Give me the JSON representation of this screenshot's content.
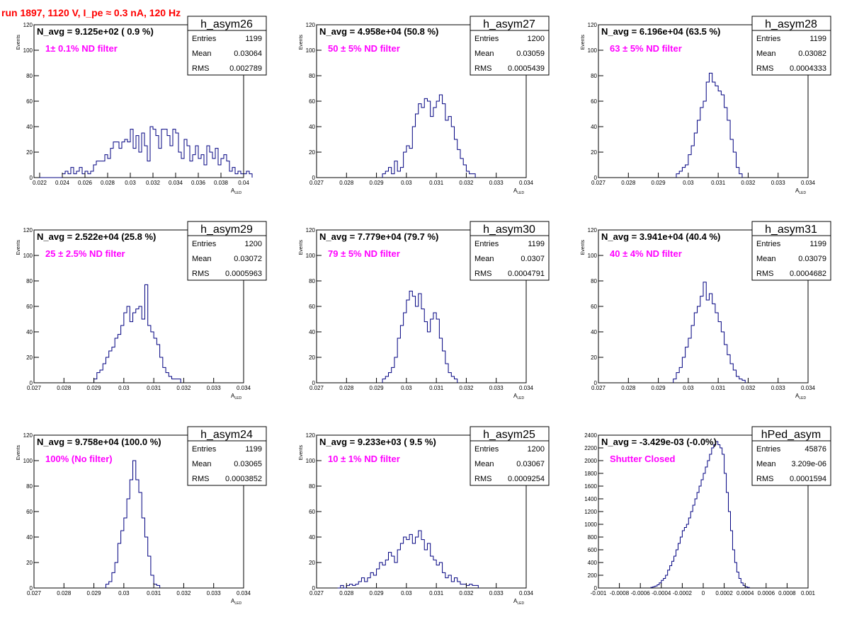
{
  "page": {
    "title": "run 1897,  1120 V, I_pe ≈ 0.3 nA, 120 Hz"
  },
  "colors": {
    "histogram": "#000080",
    "note": "#ff00ff",
    "title": "#ff0000",
    "axis": "#000000"
  },
  "chart_data": [
    {
      "type": "histogram",
      "name": "h_asym26",
      "header": "N_avg = 9.125e+02 ( 0.9 %)",
      "note": "1± 0.1% ND filter",
      "stats": {
        "entries_label": "Entries",
        "entries": "1199",
        "mean_label": "Mean",
        "mean": "0.03064",
        "rms_label": "RMS",
        "rms": "0.002789"
      },
      "ylabel": "Events",
      "xlabel": "A",
      "xlabel_sub": "LED",
      "xlim": [
        0.0215,
        0.04
      ],
      "ylim": [
        0,
        120
      ],
      "xticks": [
        0.022,
        0.024,
        0.026,
        0.028,
        0.03,
        0.032,
        0.034,
        0.036,
        0.038,
        0.04
      ],
      "xtick_labels": [
        "0.022",
        "0.024",
        "0.026",
        "0.028",
        "0.03",
        "0.032",
        "0.034",
        "0.036",
        "0.038",
        "0.04"
      ],
      "yticks": [
        0,
        20,
        40,
        60,
        80,
        100,
        120
      ],
      "ytick_labels": [
        "0",
        "20",
        "40",
        "60",
        "80",
        "100",
        "120"
      ],
      "x0": 0.0215,
      "bin_width": 0.00025,
      "values": [
        0,
        0,
        0,
        0,
        0,
        0,
        0,
        0,
        0,
        0,
        3,
        5,
        3,
        8,
        3,
        5,
        8,
        3,
        5,
        3,
        5,
        10,
        13,
        13,
        13,
        18,
        15,
        23,
        28,
        28,
        23,
        28,
        30,
        28,
        38,
        23,
        33,
        20,
        35,
        25,
        13,
        40,
        38,
        33,
        23,
        38,
        38,
        33,
        25,
        38,
        35,
        20,
        15,
        30,
        25,
        13,
        18,
        25,
        15,
        18,
        10,
        25,
        20,
        15,
        23,
        10,
        15,
        18,
        13,
        5,
        8,
        3,
        5,
        3,
        3,
        5,
        3
      ]
    },
    {
      "type": "histogram",
      "name": "h_asym27",
      "header": "N_avg = 4.958e+04 (50.8 %)",
      "note": "50 ± 5% ND filter",
      "stats": {
        "entries_label": "Entries",
        "entries": "1200",
        "mean_label": "Mean",
        "mean": "0.03059",
        "rms_label": "RMS",
        "rms": "0.0005439"
      },
      "ylabel": "Events",
      "xlabel": "A",
      "xlabel_sub": "LED",
      "xlim": [
        0.027,
        0.034
      ],
      "ylim": [
        0,
        120
      ],
      "xticks": [
        0.027,
        0.028,
        0.029,
        0.03,
        0.031,
        0.032,
        0.033,
        0.034
      ],
      "xtick_labels": [
        "0.027",
        "0.028",
        "0.029",
        "0.03",
        "0.031",
        "0.032",
        "0.033",
        "0.034"
      ],
      "yticks": [
        0,
        20,
        40,
        60,
        80,
        100,
        120
      ],
      "ytick_labels": [
        "0",
        "20",
        "40",
        "60",
        "80",
        "100",
        "120"
      ],
      "x0": 0.0292,
      "bin_width": 0.0001,
      "values": [
        3,
        5,
        8,
        3,
        13,
        5,
        8,
        20,
        25,
        23,
        40,
        50,
        58,
        55,
        62,
        60,
        48,
        55,
        60,
        65,
        58,
        45,
        48,
        40,
        30,
        22,
        15,
        10,
        5,
        3,
        3
      ]
    },
    {
      "type": "histogram",
      "name": "h_asym28",
      "header": "N_avg = 6.196e+04 (63.5 %)",
      "note": "63 ± 5% ND filter",
      "stats": {
        "entries_label": "Entries",
        "entries": "1199",
        "mean_label": "Mean",
        "mean": "0.03082",
        "rms_label": "RMS",
        "rms": "0.0004333"
      },
      "ylabel": "Events",
      "xlabel": "A",
      "xlabel_sub": "LED",
      "xlim": [
        0.027,
        0.034
      ],
      "ylim": [
        0,
        120
      ],
      "xticks": [
        0.027,
        0.028,
        0.029,
        0.03,
        0.031,
        0.032,
        0.033,
        0.034
      ],
      "xtick_labels": [
        "0.027",
        "0.028",
        "0.029",
        "0.03",
        "0.031",
        "0.032",
        "0.033",
        "0.034"
      ],
      "yticks": [
        0,
        20,
        40,
        60,
        80,
        100,
        120
      ],
      "ytick_labels": [
        "0",
        "20",
        "40",
        "60",
        "80",
        "100",
        "120"
      ],
      "x0": 0.0296,
      "bin_width": 0.0001,
      "values": [
        3,
        5,
        8,
        10,
        18,
        25,
        35,
        45,
        55,
        60,
        75,
        82,
        75,
        72,
        68,
        65,
        55,
        45,
        30,
        20,
        8,
        3
      ]
    },
    {
      "type": "histogram",
      "name": "h_asym29",
      "header": "N_avg = 2.522e+04 (25.8 %)",
      "note": "25 ± 2.5% ND filter",
      "stats": {
        "entries_label": "Entries",
        "entries": "1200",
        "mean_label": "Mean",
        "mean": "0.03072",
        "rms_label": "RMS",
        "rms": "0.0005963"
      },
      "ylabel": "Events",
      "xlabel": "A",
      "xlabel_sub": "LED",
      "xlim": [
        0.027,
        0.034
      ],
      "ylim": [
        0,
        120
      ],
      "xticks": [
        0.027,
        0.028,
        0.029,
        0.03,
        0.031,
        0.032,
        0.033,
        0.034
      ],
      "xtick_labels": [
        "0.027",
        "0.028",
        "0.029",
        "0.03",
        "0.031",
        "0.032",
        "0.033",
        "0.034"
      ],
      "yticks": [
        0,
        20,
        40,
        60,
        80,
        100,
        120
      ],
      "ytick_labels": [
        "0",
        "20",
        "40",
        "60",
        "80",
        "100",
        "120"
      ],
      "x0": 0.029,
      "bin_width": 0.0001,
      "values": [
        3,
        8,
        10,
        15,
        20,
        25,
        28,
        35,
        38,
        45,
        55,
        60,
        48,
        55,
        58,
        60,
        50,
        77,
        45,
        40,
        35,
        30,
        20,
        12,
        8,
        5,
        3,
        3,
        3
      ]
    },
    {
      "type": "histogram",
      "name": "h_asym30",
      "header": "N_avg = 7.779e+04 (79.7 %)",
      "note": "79 ± 5% ND filter",
      "stats": {
        "entries_label": "Entries",
        "entries": "1199",
        "mean_label": "Mean",
        "mean": "0.0307",
        "rms_label": "RMS",
        "rms": "0.0004791"
      },
      "ylabel": "Events",
      "xlabel": "A",
      "xlabel_sub": "LED",
      "xlim": [
        0.027,
        0.034
      ],
      "ylim": [
        0,
        120
      ],
      "xticks": [
        0.027,
        0.028,
        0.029,
        0.03,
        0.031,
        0.032,
        0.033,
        0.034
      ],
      "xtick_labels": [
        "0.027",
        "0.028",
        "0.029",
        "0.03",
        "0.031",
        "0.032",
        "0.033",
        "0.034"
      ],
      "yticks": [
        0,
        20,
        40,
        60,
        80,
        100,
        120
      ],
      "ytick_labels": [
        "0",
        "20",
        "40",
        "60",
        "80",
        "100",
        "120"
      ],
      "x0": 0.0292,
      "bin_width": 0.0001,
      "values": [
        3,
        5,
        8,
        12,
        20,
        35,
        45,
        55,
        65,
        72,
        68,
        60,
        70,
        58,
        48,
        40,
        50,
        55,
        50,
        35,
        25,
        15,
        8,
        5,
        3
      ]
    },
    {
      "type": "histogram",
      "name": "h_asym31",
      "header": "N_avg = 3.941e+04 (40.4 %)",
      "note": "40 ± 4% ND filter",
      "stats": {
        "entries_label": "Entries",
        "entries": "1199",
        "mean_label": "Mean",
        "mean": "0.03079",
        "rms_label": "RMS",
        "rms": "0.0004682"
      },
      "ylabel": "Events",
      "xlabel": "A",
      "xlabel_sub": "LED",
      "xlim": [
        0.027,
        0.034
      ],
      "ylim": [
        0,
        120
      ],
      "xticks": [
        0.027,
        0.028,
        0.029,
        0.03,
        0.031,
        0.032,
        0.033,
        0.034
      ],
      "xtick_labels": [
        "0.027",
        "0.028",
        "0.029",
        "0.03",
        "0.031",
        "0.032",
        "0.033",
        "0.034"
      ],
      "yticks": [
        0,
        20,
        40,
        60,
        80,
        100,
        120
      ],
      "ytick_labels": [
        "0",
        "20",
        "40",
        "60",
        "80",
        "100",
        "120"
      ],
      "x0": 0.0295,
      "bin_width": 0.0001,
      "values": [
        3,
        8,
        12,
        20,
        28,
        35,
        45,
        55,
        60,
        68,
        79,
        65,
        70,
        62,
        55,
        48,
        40,
        30,
        22,
        15,
        10,
        5,
        3,
        2
      ]
    },
    {
      "type": "histogram",
      "name": "h_asym24",
      "header": "N_avg = 9.758e+04 (100.0 %)",
      "note": "100% (No filter)",
      "stats": {
        "entries_label": "Entries",
        "entries": "1199",
        "mean_label": "Mean",
        "mean": "0.03065",
        "rms_label": "RMS",
        "rms": "0.0003852"
      },
      "ylabel": "Events",
      "xlabel": "A",
      "xlabel_sub": "LED",
      "xlim": [
        0.027,
        0.034
      ],
      "ylim": [
        0,
        120
      ],
      "xticks": [
        0.027,
        0.028,
        0.029,
        0.03,
        0.031,
        0.032,
        0.033,
        0.034
      ],
      "xtick_labels": [
        "0.027",
        "0.028",
        "0.029",
        "0.03",
        "0.031",
        "0.032",
        "0.033",
        "0.034"
      ],
      "yticks": [
        0,
        20,
        40,
        60,
        80,
        100,
        120
      ],
      "ytick_labels": [
        "0",
        "20",
        "40",
        "60",
        "80",
        "100",
        "120"
      ],
      "x0": 0.0294,
      "bin_width": 0.0001,
      "values": [
        3,
        5,
        12,
        20,
        35,
        45,
        55,
        70,
        85,
        100,
        85,
        75,
        55,
        40,
        25,
        10,
        3,
        2
      ]
    },
    {
      "type": "histogram",
      "name": "h_asym25",
      "header": "N_avg = 9.233e+03 ( 9.5 %)",
      "note": "10 ± 1% ND filter",
      "stats": {
        "entries_label": "Entries",
        "entries": "1200",
        "mean_label": "Mean",
        "mean": "0.03067",
        "rms_label": "RMS",
        "rms": "0.0009254"
      },
      "ylabel": "Events",
      "xlabel": "A",
      "xlabel_sub": "LED",
      "xlim": [
        0.027,
        0.034
      ],
      "ylim": [
        0,
        120
      ],
      "xticks": [
        0.027,
        0.028,
        0.029,
        0.03,
        0.031,
        0.032,
        0.033,
        0.034
      ],
      "xtick_labels": [
        "0.027",
        "0.028",
        "0.029",
        "0.03",
        "0.031",
        "0.032",
        "0.033",
        "0.034"
      ],
      "yticks": [
        0,
        20,
        40,
        60,
        80,
        100,
        120
      ],
      "ytick_labels": [
        "0",
        "20",
        "40",
        "60",
        "80",
        "100",
        "120"
      ],
      "x0": 0.0277,
      "bin_width": 0.0001,
      "values": [
        0,
        2,
        0,
        2,
        3,
        2,
        3,
        5,
        8,
        5,
        8,
        12,
        10,
        15,
        20,
        18,
        22,
        28,
        25,
        20,
        30,
        35,
        40,
        38,
        42,
        35,
        40,
        45,
        38,
        30,
        35,
        25,
        22,
        18,
        20,
        12,
        8,
        10,
        5,
        8,
        5,
        3,
        3,
        2,
        3,
        2,
        2
      ]
    },
    {
      "type": "histogram",
      "name": "hPed_asym",
      "header": "N_avg = -3.429e-03 (-0.0%)",
      "note": "Shutter Closed",
      "stats": {
        "entries_label": "Entries",
        "entries": "45876",
        "mean_label": "Mean",
        "mean": "3.209e-06",
        "rms_label": "RMS",
        "rms": "0.0001594"
      },
      "ylabel": "",
      "xlabel": "",
      "xlabel_sub": "",
      "xlim": [
        -0.001,
        0.001
      ],
      "ylim": [
        0,
        2400
      ],
      "xticks": [
        -0.001,
        -0.0008,
        -0.0006,
        -0.0004,
        -0.0002,
        0,
        0.0002,
        0.0004,
        0.0006,
        0.0008,
        0.001
      ],
      "xtick_labels": [
        "-0.001",
        "-0.0008",
        "-0.0006",
        "-0.0004",
        "-0.0002",
        "0",
        "0.0002",
        "0.0004",
        "0.0006",
        "0.0008",
        "0.001"
      ],
      "yticks": [
        0,
        200,
        400,
        600,
        800,
        1000,
        1200,
        1400,
        1600,
        1800,
        2000,
        2200,
        2400
      ],
      "ytick_labels": [
        "0",
        "200",
        "400",
        "600",
        "800",
        "1000",
        "1200",
        "1400",
        "1600",
        "1800",
        "2000",
        "2200",
        "2400"
      ],
      "x0": -0.0005,
      "bin_width": 2e-05,
      "values": [
        10,
        20,
        30,
        50,
        80,
        120,
        150,
        200,
        280,
        350,
        420,
        500,
        600,
        700,
        800,
        900,
        950,
        1000,
        1100,
        1200,
        1300,
        1400,
        1500,
        1600,
        1700,
        1800,
        1900,
        2000,
        2100,
        2200,
        2250,
        2300,
        2250,
        2200,
        2100,
        1800,
        1500,
        1200,
        900,
        600,
        400,
        250,
        150,
        80,
        40,
        20,
        10
      ]
    }
  ]
}
